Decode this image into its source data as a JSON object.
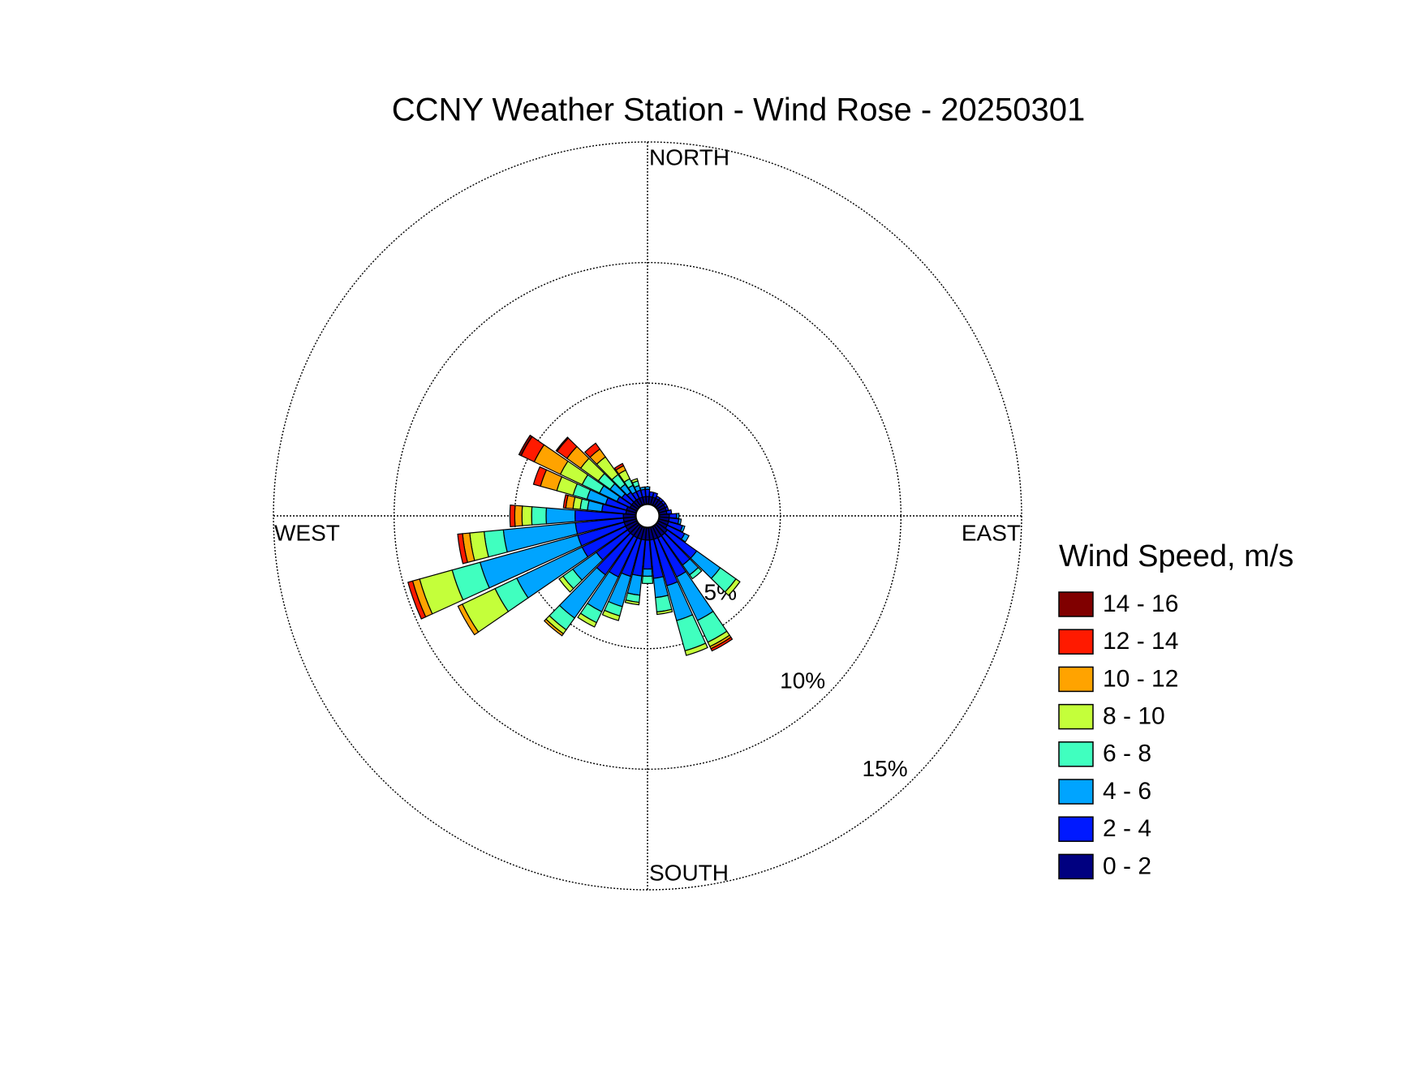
{
  "chart_data": {
    "type": "windrose",
    "title": "CCNY Weather Station - Wind Rose - 20250301",
    "direction_labels": [
      "NORTH",
      "EAST",
      "SOUTH",
      "WEST"
    ],
    "x": [
      0,
      10,
      20,
      30,
      40,
      50,
      60,
      70,
      80,
      90,
      100,
      110,
      120,
      130,
      140,
      150,
      160,
      170,
      180,
      190,
      200,
      210,
      220,
      230,
      240,
      250,
      260,
      270,
      280,
      290,
      300,
      310,
      320,
      330,
      340,
      350
    ],
    "ylim": [
      0,
      15
    ],
    "yticks": [
      {
        "value": 5,
        "label": "5%"
      },
      {
        "value": 10,
        "label": "10%"
      },
      {
        "value": 15,
        "label": "15%"
      }
    ],
    "legend_title": "Wind Speed, m/s",
    "series": [
      {
        "name": "0 - 2",
        "color": "#000080",
        "values": [
          0.3,
          0.3,
          0.3,
          0.3,
          0.3,
          0.3,
          0.3,
          0.3,
          0.3,
          0.4,
          0.4,
          0.4,
          0.4,
          0.5,
          0.5,
          0.5,
          0.5,
          0.5,
          0.5,
          0.5,
          0.5,
          0.5,
          0.5,
          0.5,
          0.5,
          0.5,
          0.5,
          0.5,
          0.4,
          0.4,
          0.3,
          0.3,
          0.3,
          0.3,
          0.3,
          0.3
        ]
      },
      {
        "name": "2 - 4",
        "color": "#0019ff",
        "values": [
          0.3,
          0.2,
          0.2,
          0.1,
          0.1,
          0.1,
          0.1,
          0.1,
          0.2,
          0.3,
          0.4,
          0.6,
          0.8,
          1.5,
          1.5,
          1.8,
          2.0,
          1.6,
          1.2,
          1.5,
          1.6,
          1.8,
          2.0,
          1.6,
          2.0,
          2.0,
          2.0,
          2.0,
          1.0,
          0.9,
          0.6,
          0.5,
          0.4,
          0.3,
          0.3,
          0.3
        ]
      },
      {
        "name": "4 - 6",
        "color": "#00a4ff",
        "values": [
          0.1,
          0,
          0,
          0,
          0,
          0,
          0,
          0,
          0,
          0.1,
          0.1,
          0.1,
          0.2,
          1.2,
          0.5,
          2.0,
          1.5,
          0.8,
          0.3,
          0.8,
          1.3,
          1.6,
          2.2,
          1.2,
          3.0,
          4.2,
          3.0,
          1.2,
          0.6,
          0.8,
          0.8,
          0.6,
          0.4,
          0.3,
          0.2,
          0.1
        ]
      },
      {
        "name": "6 - 8",
        "color": "#40ffbf",
        "values": [
          0,
          0,
          0,
          0,
          0,
          0,
          0,
          0,
          0,
          0,
          0,
          0,
          0,
          0.8,
          0.2,
          1.0,
          1.3,
          0.6,
          0.3,
          0.3,
          0.4,
          0.5,
          0.6,
          0.5,
          1.0,
          1.2,
          0.8,
          0.6,
          0.3,
          0.6,
          0.8,
          0.6,
          0.5,
          0.3,
          0.2,
          0
        ]
      },
      {
        "name": "8 - 10",
        "color": "#c4ff3a",
        "values": [
          0,
          0,
          0,
          0,
          0,
          0,
          0,
          0,
          0,
          0,
          0,
          0,
          0,
          0.2,
          0,
          0.2,
          0.2,
          0.1,
          0,
          0.1,
          0.2,
          0.2,
          0.2,
          0.2,
          1.5,
          1.4,
          0.6,
          0.4,
          0.3,
          0.7,
          1.0,
          0.9,
          0.9,
          0.4,
          0.1,
          0
        ]
      },
      {
        "name": "10 - 12",
        "color": "#ffa300",
        "values": [
          0,
          0,
          0,
          0,
          0,
          0,
          0,
          0,
          0,
          0,
          0,
          0,
          0,
          0,
          0,
          0.1,
          0,
          0,
          0,
          0,
          0,
          0,
          0.1,
          0,
          0.2,
          0.3,
          0.3,
          0.3,
          0.3,
          0.7,
          1.2,
          0.7,
          0.4,
          0.2,
          0,
          0
        ]
      },
      {
        "name": "12 - 14",
        "color": "#ff1a00",
        "values": [
          0,
          0,
          0,
          0,
          0,
          0,
          0,
          0,
          0,
          0,
          0,
          0,
          0,
          0,
          0,
          0.1,
          0,
          0,
          0,
          0,
          0,
          0,
          0,
          0,
          0,
          0.2,
          0.2,
          0.2,
          0.1,
          0.3,
          0.6,
          0.5,
          0.3,
          0.1,
          0,
          0
        ]
      },
      {
        "name": "14 - 16",
        "color": "#800000",
        "values": [
          0,
          0,
          0,
          0,
          0,
          0,
          0,
          0,
          0,
          0,
          0,
          0,
          0,
          0,
          0,
          0,
          0,
          0,
          0,
          0,
          0,
          0,
          0,
          0,
          0,
          0,
          0,
          0,
          0,
          0,
          0.1,
          0.05,
          0,
          0,
          0,
          0
        ]
      }
    ]
  }
}
